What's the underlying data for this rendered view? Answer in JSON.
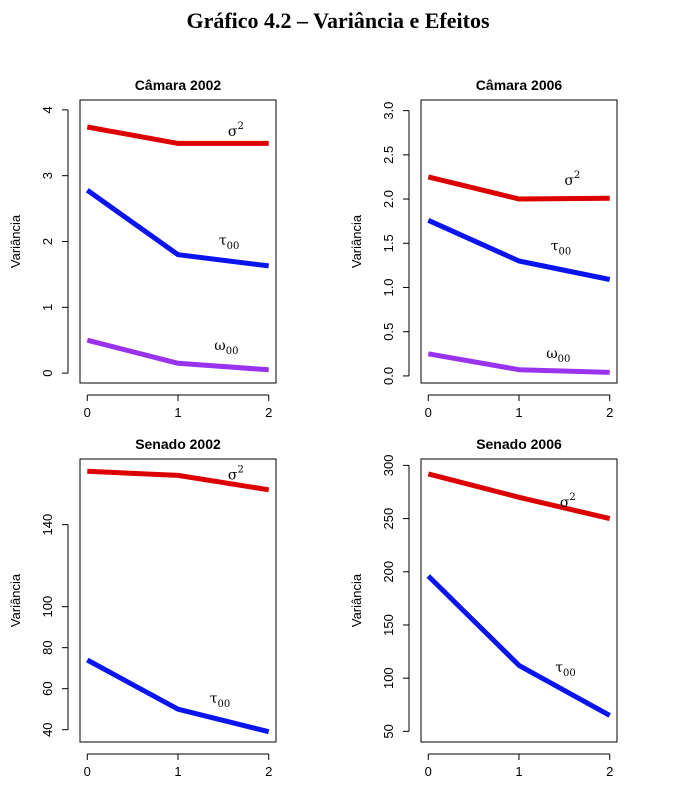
{
  "figure": {
    "title": "Gráfico 4.2 – Variância e Efeitos"
  },
  "colors": {
    "sigma2": "#dd0000",
    "tau00": "#0a14ee",
    "omega00": "#9933ee"
  },
  "chart_data": [
    {
      "type": "line",
      "title": "Câmara 2002",
      "ylabel": "Variância",
      "xlabel": "",
      "x": [
        0,
        1,
        2
      ],
      "x_ticks": [
        "0",
        "1",
        "2"
      ],
      "xlim": [
        -0.08,
        2.08
      ],
      "ylim": [
        -0.15,
        4.15
      ],
      "y_ticks": [
        "0",
        "1",
        "2",
        "3",
        "4"
      ],
      "y_tick_values": [
        0,
        1,
        2,
        3,
        4
      ],
      "grid": false,
      "series": [
        {
          "key": "sigma2",
          "symbol": "σ",
          "sup": "2",
          "sub": "",
          "values": [
            3.74,
            3.49,
            3.49
          ],
          "label_x": 1.55,
          "label_y": 3.6
        },
        {
          "key": "tau00",
          "symbol": "τ",
          "sup": "",
          "sub": "00",
          "values": [
            2.78,
            1.8,
            1.63
          ],
          "label_x": 1.45,
          "label_y": 1.95
        },
        {
          "key": "omega00",
          "symbol": "ω",
          "sup": "",
          "sub": "00",
          "values": [
            0.5,
            0.15,
            0.05
          ],
          "label_x": 1.4,
          "label_y": 0.35
        }
      ]
    },
    {
      "type": "line",
      "title": "Câmara 2006",
      "ylabel": "Variância",
      "xlabel": "",
      "x": [
        0,
        1,
        2
      ],
      "x_ticks": [
        "0",
        "1",
        "2"
      ],
      "xlim": [
        -0.08,
        2.08
      ],
      "ylim": [
        -0.08,
        3.12
      ],
      "y_ticks": [
        "0.0",
        "0.5",
        "1.0",
        "1.5",
        "2.0",
        "2.5",
        "3.0"
      ],
      "y_tick_values": [
        0,
        0.5,
        1,
        1.5,
        2,
        2.5,
        3
      ],
      "grid": false,
      "series": [
        {
          "key": "sigma2",
          "symbol": "σ",
          "sup": "2",
          "sub": "",
          "values": [
            2.25,
            2.0,
            2.01
          ],
          "label_x": 1.5,
          "label_y": 2.16
        },
        {
          "key": "tau00",
          "symbol": "τ",
          "sup": "",
          "sub": "00",
          "values": [
            1.76,
            1.3,
            1.09
          ],
          "label_x": 1.35,
          "label_y": 1.42
        },
        {
          "key": "omega00",
          "symbol": "ω",
          "sup": "",
          "sub": "00",
          "values": [
            0.25,
            0.07,
            0.04
          ],
          "label_x": 1.3,
          "label_y": 0.2
        }
      ]
    },
    {
      "type": "line",
      "title": "Senado 2002",
      "ylabel": "Variância",
      "xlabel": "",
      "x": [
        0,
        1,
        2
      ],
      "x_ticks": [
        "0",
        "1",
        "2"
      ],
      "xlim": [
        -0.08,
        2.08
      ],
      "ylim": [
        34,
        172
      ],
      "y_ticks": [
        "40",
        "60",
        "80",
        "100",
        "140"
      ],
      "y_tick_values": [
        40,
        60,
        80,
        100,
        140
      ],
      "grid": false,
      "series": [
        {
          "key": "sigma2",
          "symbol": "σ",
          "sup": "2",
          "sub": "",
          "values": [
            166,
            164,
            157
          ],
          "label_x": 1.55,
          "label_y": 162
        },
        {
          "key": "tau00",
          "symbol": "τ",
          "sup": "",
          "sub": "00",
          "values": [
            74,
            50,
            39
          ],
          "label_x": 1.35,
          "label_y": 53
        }
      ]
    },
    {
      "type": "line",
      "title": "Senado 2006",
      "ylabel": "Variância",
      "xlabel": "",
      "x": [
        0,
        1,
        2
      ],
      "x_ticks": [
        "0",
        "1",
        "2"
      ],
      "xlim": [
        -0.08,
        2.08
      ],
      "ylim": [
        40,
        306
      ],
      "y_ticks": [
        "50",
        "100",
        "150",
        "200",
        "250",
        "300"
      ],
      "y_tick_values": [
        50,
        100,
        150,
        200,
        250,
        300
      ],
      "grid": false,
      "series": [
        {
          "key": "sigma2",
          "symbol": "σ",
          "sup": "2",
          "sub": "",
          "values": [
            292,
            270,
            250
          ],
          "label_x": 1.45,
          "label_y": 261
        },
        {
          "key": "tau00",
          "symbol": "τ",
          "sup": "",
          "sub": "00",
          "values": [
            196,
            112,
            65
          ],
          "label_x": 1.4,
          "label_y": 106
        }
      ]
    }
  ]
}
